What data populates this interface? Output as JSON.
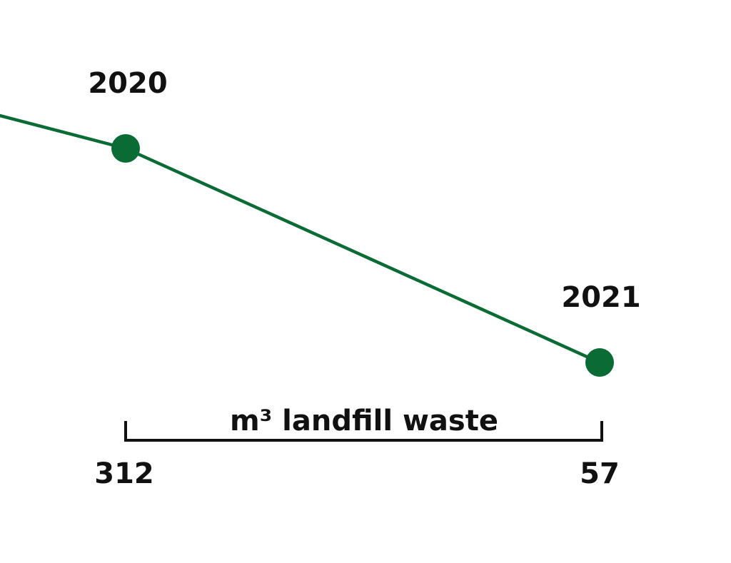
{
  "colors": {
    "line": "#0a6b35",
    "point": "#0a6b35",
    "text": "#111111",
    "bracket": "#111111"
  },
  "chart_data": {
    "type": "line",
    "title": "",
    "x": [
      "2020",
      "2021"
    ],
    "series": [
      {
        "values": [
          312,
          57
        ]
      }
    ],
    "unit_label": "m³ landfill waste",
    "xlabel": "",
    "ylabel": "",
    "grid": false,
    "legend": "none",
    "incoming_line_from_left": true
  }
}
